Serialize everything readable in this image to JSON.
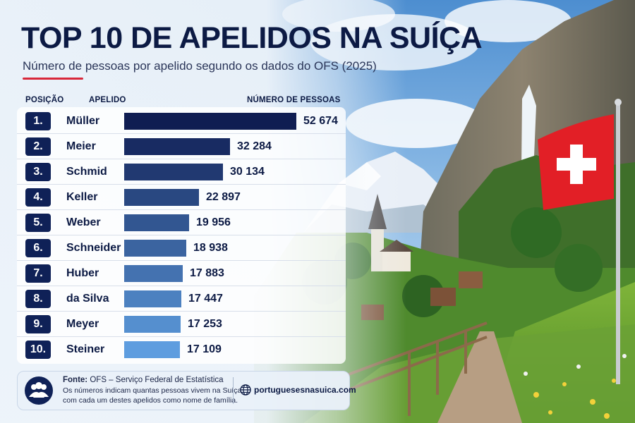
{
  "header": {
    "title": "TOP 10 DE APELIDOS NA SUÍÇA",
    "subtitle": "Número de pessoas por apelido segundo os dados do OFS (2025)"
  },
  "columns": {
    "position": "POSIÇÃO",
    "surname": "APELIDO",
    "count": "NÚMERO DE PESSOAS"
  },
  "colors": {
    "bar_dark": "#0f1d52",
    "bar_light": "#5e9ddf",
    "rank_badge": "#0f2157",
    "text": "#0c1a44",
    "flag_red": "#e21f26"
  },
  "chart_data": {
    "type": "bar",
    "orientation": "horizontal",
    "title": "TOP 10 DE APELIDOS NA SUÍÇA",
    "subtitle": "Número de pessoas por apelido segundo os dados do OFS (2025)",
    "xlabel": "NÚMERO DE PESSOAS",
    "ylabel": "APELIDO",
    "xlim": [
      0,
      52674
    ],
    "grid": false,
    "legend": "none",
    "ranks": [
      "1.",
      "2.",
      "3.",
      "4.",
      "5.",
      "6.",
      "7.",
      "8.",
      "9.",
      "10."
    ],
    "categories": [
      "Müller",
      "Meier",
      "Schmid",
      "Keller",
      "Weber",
      "Schneider",
      "Huber",
      "da Silva",
      "Meyer",
      "Steiner"
    ],
    "values": [
      52674,
      32284,
      30134,
      22897,
      19956,
      18938,
      17883,
      17447,
      17253,
      17109
    ],
    "value_labels": [
      "52 674",
      "32 284",
      "30 134",
      "22 897",
      "19 956",
      "18 938",
      "17 883",
      "17 447",
      "17 253",
      "17 109"
    ]
  },
  "footer": {
    "source_label": "Fonte:",
    "source_text": "OFS – Serviço Federal de Estatística",
    "note_line1": "Os números indicam quantas pessoas vivem na Suíça",
    "note_line2": "com cada um destes apelidos como nome de família.",
    "website": "portuguesesnasuica.com",
    "people_icon": "people-icon",
    "globe_icon": "globe-icon"
  }
}
